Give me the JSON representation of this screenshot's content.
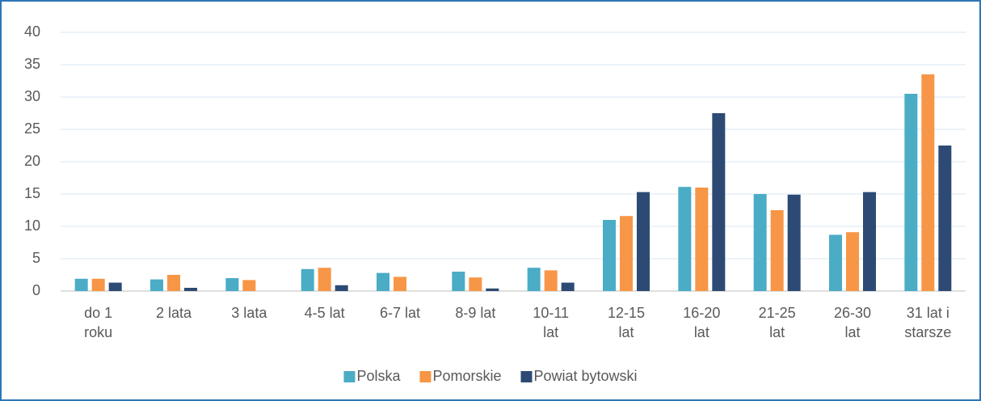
{
  "chart_data": {
    "type": "bar",
    "categories": [
      "do 1\nroku",
      "2 lata",
      "3 lata",
      "4-5 lat",
      "6-7 lat",
      "8-9 lat",
      "10-11\nlat",
      "12-15\nlat",
      "16-20\nlat",
      "21-25\nlat",
      "26-30\nlat",
      "31 lat i\nstarsze"
    ],
    "series": [
      {
        "name": "Polska",
        "color": "#4bacc6",
        "values": [
          1.9,
          1.8,
          2.0,
          3.4,
          2.8,
          3.0,
          3.6,
          11.0,
          16.1,
          15.0,
          8.7,
          30.5
        ]
      },
      {
        "name": "Pomorskie",
        "color": "#f79646",
        "values": [
          1.9,
          2.5,
          1.7,
          3.6,
          2.2,
          2.1,
          3.2,
          11.6,
          16.0,
          12.5,
          9.1,
          33.5
        ]
      },
      {
        "name": "Powiat bytowski",
        "color": "#2c4a74",
        "values": [
          1.3,
          0.5,
          0,
          0.9,
          0,
          0.4,
          1.3,
          15.3,
          27.5,
          14.9,
          15.3,
          22.5
        ]
      }
    ],
    "ylim": [
      0,
      40
    ],
    "yticks": [
      0,
      5,
      10,
      15,
      20,
      25,
      30,
      35,
      40
    ],
    "grid": true,
    "legend": "bottom"
  }
}
